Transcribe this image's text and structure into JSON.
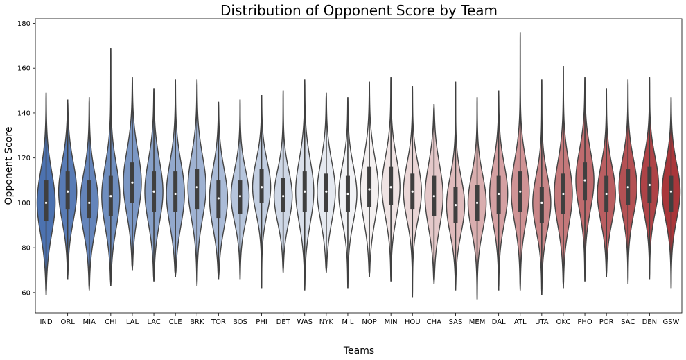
{
  "chart_data": {
    "type": "violin",
    "title": "Distribution of Opponent Score by Team",
    "xlabel": "Teams",
    "ylabel": "Opponent Score",
    "ylim": [
      51,
      182
    ],
    "yticks": [
      60,
      80,
      100,
      120,
      140,
      160,
      180
    ],
    "grid": false,
    "legend": "none",
    "colors": {
      "low": "#4c72b0",
      "mid": "#f7f7f7",
      "high": "#a9363a",
      "outline": "#444444",
      "box": "#3f3f3f",
      "median": "#ffffff"
    },
    "teams": [
      {
        "name": "IND",
        "min": 59,
        "q1": 92,
        "median": 100,
        "q3": 110,
        "max": 149
      },
      {
        "name": "ORL",
        "min": 66,
        "q1": 97,
        "median": 105,
        "q3": 114,
        "max": 146
      },
      {
        "name": "MIA",
        "min": 61,
        "q1": 93,
        "median": 100,
        "q3": 110,
        "max": 147
      },
      {
        "name": "CHI",
        "min": 63,
        "q1": 94,
        "median": 103,
        "q3": 112,
        "max": 169
      },
      {
        "name": "LAL",
        "min": 70,
        "q1": 100,
        "median": 109,
        "q3": 118,
        "max": 156
      },
      {
        "name": "LAC",
        "min": 65,
        "q1": 96,
        "median": 105,
        "q3": 114,
        "max": 151
      },
      {
        "name": "CLE",
        "min": 67,
        "q1": 96,
        "median": 104,
        "q3": 114,
        "max": 155
      },
      {
        "name": "BRK",
        "min": 63,
        "q1": 97,
        "median": 107,
        "q3": 115,
        "max": 155
      },
      {
        "name": "TOR",
        "min": 66,
        "q1": 93,
        "median": 102,
        "q3": 110,
        "max": 145
      },
      {
        "name": "BOS",
        "min": 66,
        "q1": 95,
        "median": 103,
        "q3": 110,
        "max": 146
      },
      {
        "name": "PHI",
        "min": 62,
        "q1": 100,
        "median": 107,
        "q3": 115,
        "max": 148
      },
      {
        "name": "DET",
        "min": 69,
        "q1": 96,
        "median": 103,
        "q3": 111,
        "max": 150
      },
      {
        "name": "WAS",
        "min": 61,
        "q1": 96,
        "median": 105,
        "q3": 114,
        "max": 155
      },
      {
        "name": "NYK",
        "min": 69,
        "q1": 96,
        "median": 105,
        "q3": 113,
        "max": 149
      },
      {
        "name": "MIL",
        "min": 62,
        "q1": 96,
        "median": 104,
        "q3": 112,
        "max": 147
      },
      {
        "name": "NOP",
        "min": 67,
        "q1": 98,
        "median": 106,
        "q3": 116,
        "max": 154
      },
      {
        "name": "MIN",
        "min": 65,
        "q1": 99,
        "median": 107,
        "q3": 116,
        "max": 156
      },
      {
        "name": "HOU",
        "min": 58,
        "q1": 97,
        "median": 105,
        "q3": 113,
        "max": 152
      },
      {
        "name": "CHA",
        "min": 64,
        "q1": 94,
        "median": 103,
        "q3": 112,
        "max": 144
      },
      {
        "name": "SAS",
        "min": 61,
        "q1": 91,
        "median": 99,
        "q3": 107,
        "max": 154
      },
      {
        "name": "MEM",
        "min": 57,
        "q1": 92,
        "median": 100,
        "q3": 108,
        "max": 147
      },
      {
        "name": "DAL",
        "min": 61,
        "q1": 95,
        "median": 104,
        "q3": 112,
        "max": 150
      },
      {
        "name": "ATL",
        "min": 61,
        "q1": 96,
        "median": 105,
        "q3": 114,
        "max": 176
      },
      {
        "name": "UTA",
        "min": 59,
        "q1": 91,
        "median": 100,
        "q3": 107,
        "max": 155
      },
      {
        "name": "OKC",
        "min": 62,
        "q1": 95,
        "median": 104,
        "q3": 113,
        "max": 161
      },
      {
        "name": "PHO",
        "min": 65,
        "q1": 101,
        "median": 110,
        "q3": 118,
        "max": 156
      },
      {
        "name": "POR",
        "min": 67,
        "q1": 96,
        "median": 104,
        "q3": 112,
        "max": 151
      },
      {
        "name": "SAC",
        "min": 64,
        "q1": 99,
        "median": 107,
        "q3": 115,
        "max": 155
      },
      {
        "name": "DEN",
        "min": 66,
        "q1": 100,
        "median": 108,
        "q3": 116,
        "max": 156
      },
      {
        "name": "GSW",
        "min": 62,
        "q1": 96,
        "median": 105,
        "q3": 112,
        "max": 147
      }
    ]
  }
}
